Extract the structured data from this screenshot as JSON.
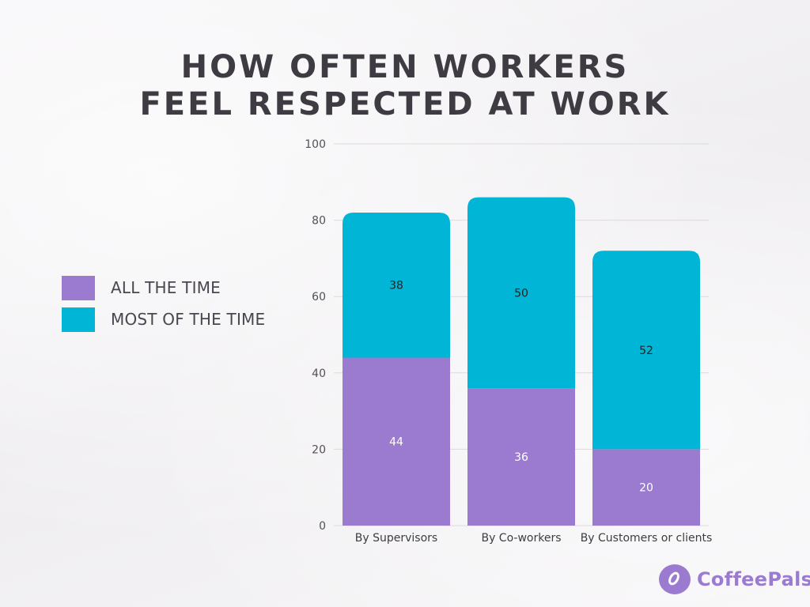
{
  "chart_data": {
    "type": "bar",
    "stacked": true,
    "title": [
      "HOW OFTEN WORKERS",
      "FEEL RESPECTED AT WORK"
    ],
    "categories": [
      "By Supervisors",
      "By Co-workers",
      "By Customers or clients"
    ],
    "series": [
      {
        "name": "ALL THE TIME",
        "values": [
          44,
          36,
          20
        ],
        "color": "#9b7bd0"
      },
      {
        "name": "MOST OF THE TIME",
        "values": [
          38,
          50,
          52
        ],
        "color": "#00b5d6"
      }
    ],
    "ylim": [
      0,
      100
    ],
    "yticks": [
      "0",
      "20",
      "40",
      "60",
      "80",
      "100"
    ],
    "grid": true,
    "legend_position": "left"
  },
  "branding": {
    "logo_text": "CoffeePals",
    "logo_icon": "coffee-bean-icon",
    "color": "#9b7bd0"
  }
}
